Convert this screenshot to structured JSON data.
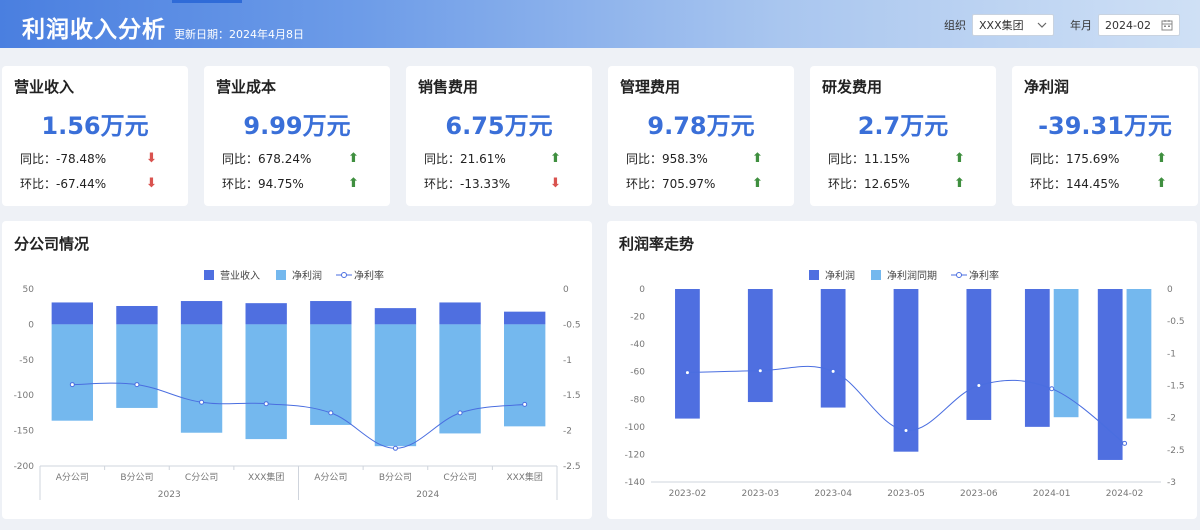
{
  "header": {
    "title": "利润收入分析",
    "update_label": "更新日期：2024年4月8日",
    "org_label": "组织",
    "org_value": "XXX集团",
    "period_label": "年月",
    "period_value": "2024-02"
  },
  "kpis": [
    {
      "title": "营业收入",
      "value": "1.56万元",
      "yoy_label": "同比：",
      "yoy": "-78.48%",
      "yoy_dir": "down",
      "mom_label": "环比：",
      "mom": "-67.44%",
      "mom_dir": "down"
    },
    {
      "title": "营业成本",
      "value": "9.99万元",
      "yoy_label": "同比：",
      "yoy": "678.24%",
      "yoy_dir": "up",
      "mom_label": "环比：",
      "mom": "94.75%",
      "mom_dir": "up"
    },
    {
      "title": "销售费用",
      "value": "6.75万元",
      "yoy_label": "同比：",
      "yoy": "21.61%",
      "yoy_dir": "up",
      "mom_label": "环比：",
      "mom": "-13.33%",
      "mom_dir": "down"
    },
    {
      "title": "管理费用",
      "value": "9.78万元",
      "yoy_label": "同比：",
      "yoy": "958.3%",
      "yoy_dir": "up",
      "mom_label": "环比：",
      "mom": "705.97%",
      "mom_dir": "up"
    },
    {
      "title": "研发费用",
      "value": "2.7万元",
      "yoy_label": "同比：",
      "yoy": "11.15%",
      "yoy_dir": "up",
      "mom_label": "环比：",
      "mom": "12.65%",
      "mom_dir": "up"
    },
    {
      "title": "净利润",
      "value": "-39.31万元",
      "yoy_label": "同比：",
      "yoy": "175.69%",
      "yoy_dir": "up",
      "mom_label": "环比：",
      "mom": "144.45%",
      "mom_dir": "up"
    }
  ],
  "colors": {
    "dark_blue": "#4f6fe0",
    "light_blue": "#74b8ee",
    "line": "#4a6ee0",
    "up": "#3f8f3f",
    "down": "#d9534f",
    "value": "#3a6fd8"
  },
  "panels": {
    "branch_title": "分公司情况",
    "trend_title": "利润率走势"
  },
  "chart_data": [
    {
      "type": "bar",
      "title": "分公司情况",
      "categories": [
        "A分公司",
        "B分公司",
        "C分公司",
        "XXX集团",
        "A分公司",
        "B分公司",
        "C分公司",
        "XXX集团"
      ],
      "groups": [
        {
          "label": "2023",
          "span": 4
        },
        {
          "label": "2024",
          "span": 4
        }
      ],
      "y_left": {
        "ticks": [
          50,
          0,
          -50,
          -100,
          -150,
          -200
        ],
        "range": [
          -200,
          50
        ]
      },
      "y_right": {
        "ticks": [
          0,
          -0.5,
          -1,
          -1.5,
          -2,
          -2.5
        ],
        "range": [
          -2.5,
          0
        ]
      },
      "series": [
        {
          "name": "营业收入",
          "kind": "bar",
          "values": [
            31,
            26,
            33,
            30,
            33,
            23,
            31,
            18
          ]
        },
        {
          "name": "净利润",
          "kind": "bar",
          "values": [
            -136,
            -118,
            -153,
            -162,
            -142,
            -172,
            -154,
            -144
          ]
        },
        {
          "name": "净利率",
          "kind": "line",
          "axis": "right",
          "values": [
            -1.35,
            -1.35,
            -1.6,
            -1.62,
            -1.75,
            -2.25,
            -1.75,
            -1.63
          ]
        }
      ]
    },
    {
      "type": "bar",
      "title": "利润率走势",
      "categories": [
        "2023-02",
        "2023-03",
        "2023-04",
        "2023-05",
        "2023-06",
        "2024-01",
        "2024-02"
      ],
      "y_left": {
        "ticks": [
          0,
          -20,
          -40,
          -60,
          -80,
          -100,
          -120,
          -140
        ],
        "range": [
          -140,
          0
        ]
      },
      "y_right": {
        "ticks": [
          0,
          -0.5,
          -1,
          -1.5,
          -2,
          -2.5,
          -3
        ],
        "range": [
          -3,
          0
        ]
      },
      "series": [
        {
          "name": "净利润",
          "kind": "bar",
          "values": [
            -94,
            -82,
            -86,
            -118,
            -95,
            -100,
            -124
          ]
        },
        {
          "name": "净利润同期",
          "kind": "bar",
          "values": [
            null,
            null,
            null,
            null,
            null,
            -93,
            -94
          ]
        },
        {
          "name": "净利率",
          "kind": "line",
          "axis": "right",
          "values": [
            -1.3,
            -1.27,
            -1.28,
            -2.2,
            -1.5,
            -1.55,
            -2.4
          ]
        }
      ]
    }
  ]
}
